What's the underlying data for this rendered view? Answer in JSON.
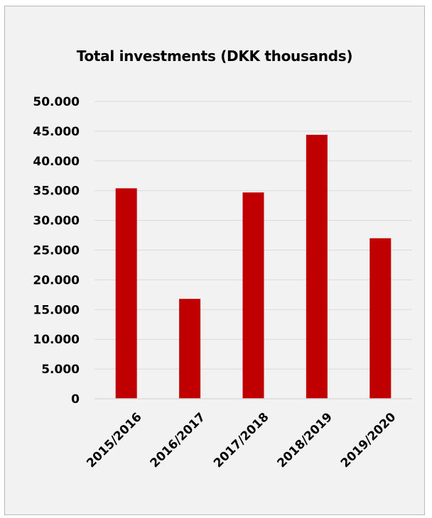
{
  "chart_data": {
    "type": "bar",
    "title": "Total investments (DKK thousands)",
    "xlabel": "",
    "ylabel": "",
    "categories": [
      "2015/2016",
      "2016/2017",
      "2017/2018",
      "2018/2019",
      "2019/2020"
    ],
    "values": [
      35400,
      16800,
      34700,
      44400,
      27000
    ],
    "ylim": [
      0,
      50000
    ],
    "yticks": [
      0,
      5000,
      10000,
      15000,
      20000,
      25000,
      30000,
      35000,
      40000,
      45000,
      50000
    ],
    "ytick_labels": [
      "0",
      "5.000",
      "10.000",
      "15.000",
      "20.000",
      "25.000",
      "30.000",
      "35.000",
      "40.000",
      "45.000",
      "50.000"
    ],
    "grid": true,
    "legend": "none",
    "colors": {
      "bar": "#c00000",
      "gridline": "#d9d9d9",
      "background": "#f2f2f2"
    }
  }
}
